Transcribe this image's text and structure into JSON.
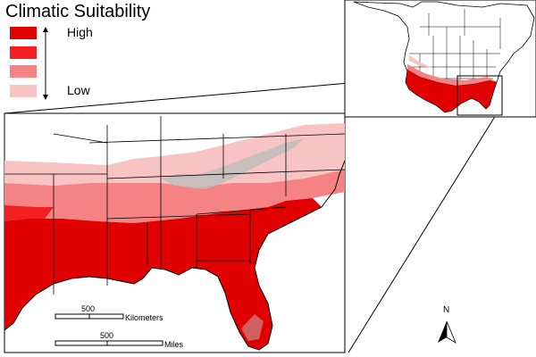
{
  "legend": {
    "title": "Climatic Suitability",
    "high_label": "High",
    "low_label": "Low",
    "classes": [
      {
        "level": "class-4",
        "color": "#E00000"
      },
      {
        "level": "class-3",
        "color": "#F22020"
      },
      {
        "level": "class-2",
        "color": "#F58383"
      },
      {
        "level": "class-1",
        "color": "#F8C3C3"
      }
    ]
  },
  "scale_bars": {
    "kilometers": {
      "value_label": "500",
      "unit_label": "Kilometers"
    },
    "miles": {
      "value_label": "500",
      "unit_label": "Miles"
    }
  },
  "north_arrow": {
    "label": "N"
  },
  "colors": {
    "high": "#E00000",
    "mid_high": "#F22020",
    "mid_low": "#F58383",
    "low": "#F8C3C3",
    "border": "#000000",
    "lakes": "#FFFFFF"
  }
}
